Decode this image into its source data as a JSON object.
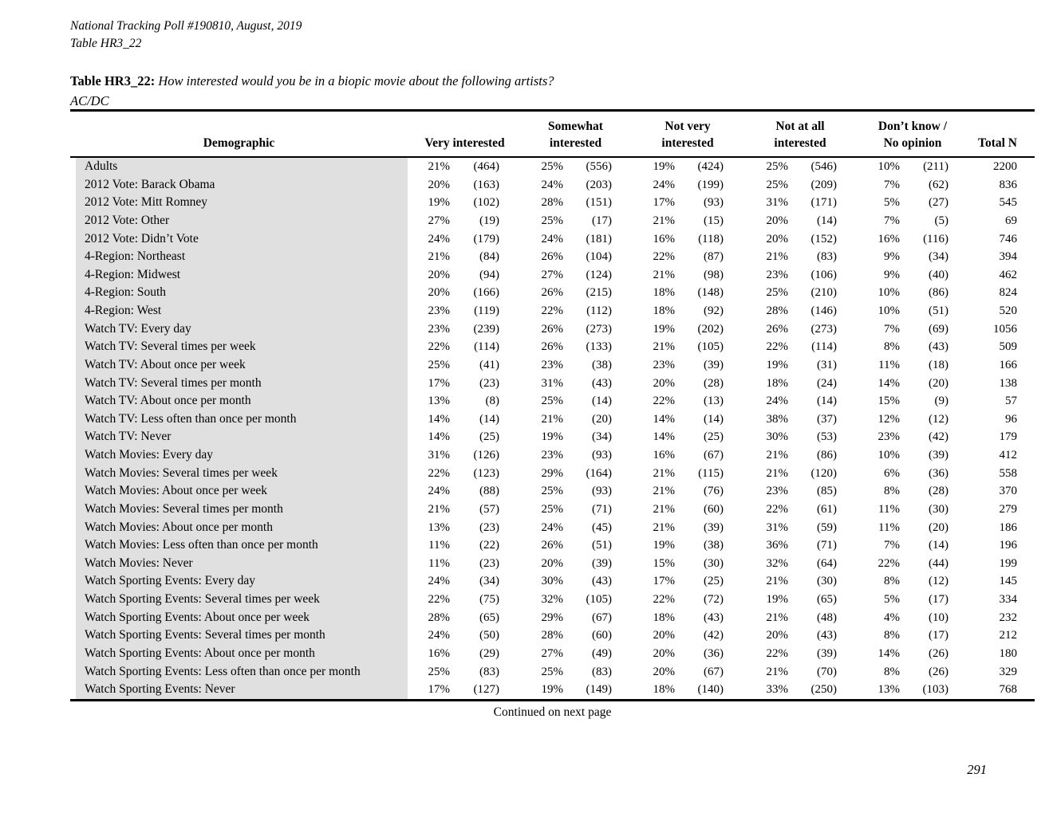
{
  "page": {
    "header_line1": "National Tracking Poll #190810, August, 2019",
    "header_line2": "Table HR3_22",
    "title_label": "Table HR3_22:",
    "title_question": "How interested would you be in a biopic movie about the following artists?",
    "title_subject": "AC/DC",
    "continued": "Continued on next page",
    "page_number": "291"
  },
  "table": {
    "columns": {
      "demographic": "Demographic",
      "groups": [
        {
          "line1": "",
          "line2": "Very interested"
        },
        {
          "line1": "Somewhat",
          "line2": "interested"
        },
        {
          "line1": "Not very",
          "line2": "interested"
        },
        {
          "line1": "Not at all",
          "line2": "interested"
        },
        {
          "line1": "Don’t know /",
          "line2": "No opinion"
        }
      ],
      "total": "Total N"
    },
    "rows": [
      {
        "label": "Adults",
        "cells": [
          "21%",
          "(464)",
          "25%",
          "(556)",
          "19%",
          "(424)",
          "25%",
          "(546)",
          "10%",
          "(211)",
          "2200"
        ]
      },
      {
        "label": "2012 Vote: Barack Obama",
        "cells": [
          "20%",
          "(163)",
          "24%",
          "(203)",
          "24%",
          "(199)",
          "25%",
          "(209)",
          "7%",
          "(62)",
          "836"
        ]
      },
      {
        "label": "2012 Vote: Mitt Romney",
        "cells": [
          "19%",
          "(102)",
          "28%",
          "(151)",
          "17%",
          "(93)",
          "31%",
          "(171)",
          "5%",
          "(27)",
          "545"
        ]
      },
      {
        "label": "2012 Vote: Other",
        "cells": [
          "27%",
          "(19)",
          "25%",
          "(17)",
          "21%",
          "(15)",
          "20%",
          "(14)",
          "7%",
          "(5)",
          "69"
        ]
      },
      {
        "label": "2012 Vote: Didn’t Vote",
        "cells": [
          "24%",
          "(179)",
          "24%",
          "(181)",
          "16%",
          "(118)",
          "20%",
          "(152)",
          "16%",
          "(116)",
          "746"
        ]
      },
      {
        "label": "4-Region: Northeast",
        "cells": [
          "21%",
          "(84)",
          "26%",
          "(104)",
          "22%",
          "(87)",
          "21%",
          "(83)",
          "9%",
          "(34)",
          "394"
        ]
      },
      {
        "label": "4-Region: Midwest",
        "cells": [
          "20%",
          "(94)",
          "27%",
          "(124)",
          "21%",
          "(98)",
          "23%",
          "(106)",
          "9%",
          "(40)",
          "462"
        ]
      },
      {
        "label": "4-Region: South",
        "cells": [
          "20%",
          "(166)",
          "26%",
          "(215)",
          "18%",
          "(148)",
          "25%",
          "(210)",
          "10%",
          "(86)",
          "824"
        ]
      },
      {
        "label": "4-Region: West",
        "cells": [
          "23%",
          "(119)",
          "22%",
          "(112)",
          "18%",
          "(92)",
          "28%",
          "(146)",
          "10%",
          "(51)",
          "520"
        ]
      },
      {
        "label": "Watch TV: Every day",
        "cells": [
          "23%",
          "(239)",
          "26%",
          "(273)",
          "19%",
          "(202)",
          "26%",
          "(273)",
          "7%",
          "(69)",
          "1056"
        ]
      },
      {
        "label": "Watch TV: Several times per week",
        "cells": [
          "22%",
          "(114)",
          "26%",
          "(133)",
          "21%",
          "(105)",
          "22%",
          "(114)",
          "8%",
          "(43)",
          "509"
        ]
      },
      {
        "label": "Watch TV: About once per week",
        "cells": [
          "25%",
          "(41)",
          "23%",
          "(38)",
          "23%",
          "(39)",
          "19%",
          "(31)",
          "11%",
          "(18)",
          "166"
        ]
      },
      {
        "label": "Watch TV: Several times per month",
        "cells": [
          "17%",
          "(23)",
          "31%",
          "(43)",
          "20%",
          "(28)",
          "18%",
          "(24)",
          "14%",
          "(20)",
          "138"
        ]
      },
      {
        "label": "Watch TV: About once per month",
        "cells": [
          "13%",
          "(8)",
          "25%",
          "(14)",
          "22%",
          "(13)",
          "24%",
          "(14)",
          "15%",
          "(9)",
          "57"
        ]
      },
      {
        "label": "Watch TV: Less often than once per month",
        "cells": [
          "14%",
          "(14)",
          "21%",
          "(20)",
          "14%",
          "(14)",
          "38%",
          "(37)",
          "12%",
          "(12)",
          "96"
        ]
      },
      {
        "label": "Watch TV: Never",
        "cells": [
          "14%",
          "(25)",
          "19%",
          "(34)",
          "14%",
          "(25)",
          "30%",
          "(53)",
          "23%",
          "(42)",
          "179"
        ]
      },
      {
        "label": "Watch Movies: Every day",
        "cells": [
          "31%",
          "(126)",
          "23%",
          "(93)",
          "16%",
          "(67)",
          "21%",
          "(86)",
          "10%",
          "(39)",
          "412"
        ]
      },
      {
        "label": "Watch Movies: Several times per week",
        "cells": [
          "22%",
          "(123)",
          "29%",
          "(164)",
          "21%",
          "(115)",
          "21%",
          "(120)",
          "6%",
          "(36)",
          "558"
        ]
      },
      {
        "label": "Watch Movies: About once per week",
        "cells": [
          "24%",
          "(88)",
          "25%",
          "(93)",
          "21%",
          "(76)",
          "23%",
          "(85)",
          "8%",
          "(28)",
          "370"
        ]
      },
      {
        "label": "Watch Movies: Several times per month",
        "cells": [
          "21%",
          "(57)",
          "25%",
          "(71)",
          "21%",
          "(60)",
          "22%",
          "(61)",
          "11%",
          "(30)",
          "279"
        ]
      },
      {
        "label": "Watch Movies: About once per month",
        "cells": [
          "13%",
          "(23)",
          "24%",
          "(45)",
          "21%",
          "(39)",
          "31%",
          "(59)",
          "11%",
          "(20)",
          "186"
        ]
      },
      {
        "label": "Watch Movies: Less often than once per month",
        "cells": [
          "11%",
          "(22)",
          "26%",
          "(51)",
          "19%",
          "(38)",
          "36%",
          "(71)",
          "7%",
          "(14)",
          "196"
        ]
      },
      {
        "label": "Watch Movies: Never",
        "cells": [
          "11%",
          "(23)",
          "20%",
          "(39)",
          "15%",
          "(30)",
          "32%",
          "(64)",
          "22%",
          "(44)",
          "199"
        ]
      },
      {
        "label": "Watch Sporting Events: Every day",
        "cells": [
          "24%",
          "(34)",
          "30%",
          "(43)",
          "17%",
          "(25)",
          "21%",
          "(30)",
          "8%",
          "(12)",
          "145"
        ]
      },
      {
        "label": "Watch Sporting Events: Several times per week",
        "cells": [
          "22%",
          "(75)",
          "32%",
          "(105)",
          "22%",
          "(72)",
          "19%",
          "(65)",
          "5%",
          "(17)",
          "334"
        ]
      },
      {
        "label": "Watch Sporting Events: About once per week",
        "cells": [
          "28%",
          "(65)",
          "29%",
          "(67)",
          "18%",
          "(43)",
          "21%",
          "(48)",
          "4%",
          "(10)",
          "232"
        ]
      },
      {
        "label": "Watch Sporting Events: Several times per month",
        "cells": [
          "24%",
          "(50)",
          "28%",
          "(60)",
          "20%",
          "(42)",
          "20%",
          "(43)",
          "8%",
          "(17)",
          "212"
        ]
      },
      {
        "label": "Watch Sporting Events: About once per month",
        "cells": [
          "16%",
          "(29)",
          "27%",
          "(49)",
          "20%",
          "(36)",
          "22%",
          "(39)",
          "14%",
          "(26)",
          "180"
        ]
      },
      {
        "label": "Watch Sporting Events: Less often than once per month",
        "cells": [
          "25%",
          "(83)",
          "25%",
          "(83)",
          "20%",
          "(67)",
          "21%",
          "(70)",
          "8%",
          "(26)",
          "329"
        ]
      },
      {
        "label": "Watch Sporting Events: Never",
        "cells": [
          "17%",
          "(127)",
          "19%",
          "(149)",
          "18%",
          "(140)",
          "33%",
          "(250)",
          "13%",
          "(103)",
          "768"
        ]
      }
    ]
  }
}
